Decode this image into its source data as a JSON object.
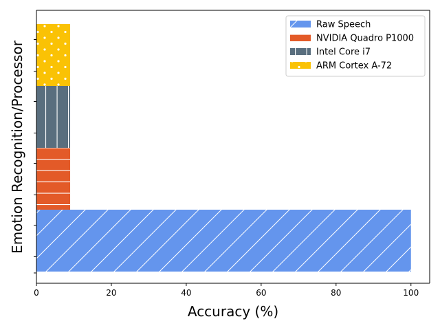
{
  "chart_data": {
    "type": "bar",
    "orientation": "horizontal",
    "title": "",
    "xlabel": "Accuracy (%)",
    "ylabel": "Emotion Recognition/Processor",
    "xlim": [
      0,
      105
    ],
    "xticks": [
      0,
      20,
      40,
      60,
      80,
      100
    ],
    "xtick_labels": [
      "0",
      "20",
      "40",
      "60",
      "80",
      "100"
    ],
    "ytick_labels": [],
    "grid": false,
    "legend_position": "upper-right",
    "series": [
      {
        "name": "Raw Speech",
        "value": 100,
        "color": "#6495ED",
        "pattern": "diagonal-hatch"
      },
      {
        "name": "NVIDIA Quadro P1000",
        "value": 9,
        "color": "#E35A28",
        "pattern": "horizontal-lines"
      },
      {
        "name": "Intel Core i7",
        "value": 9,
        "color": "#596E7E",
        "pattern": "vertical-lines"
      },
      {
        "name": "ARM Cortex A-72",
        "value": 9,
        "color": "#FAC205",
        "pattern": "dots"
      }
    ]
  }
}
